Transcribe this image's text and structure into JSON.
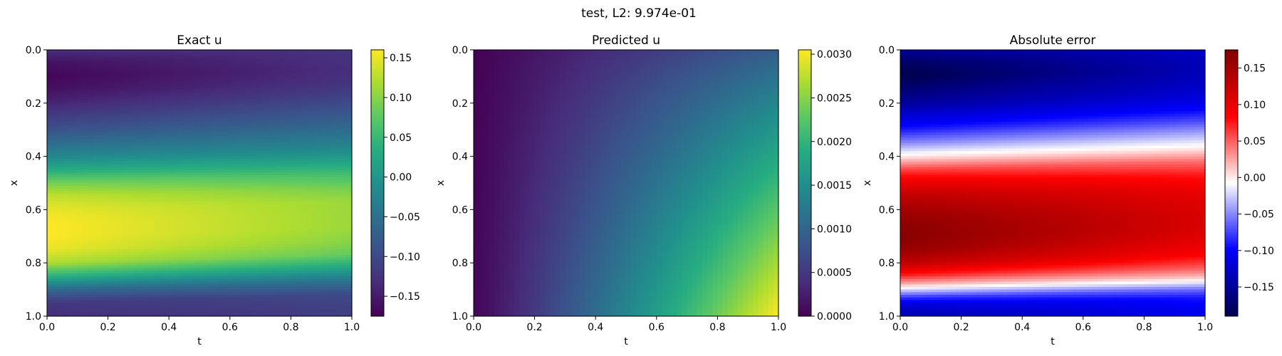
{
  "suptitle": "test, L2: 9.974e-01",
  "chart_data": [
    {
      "type": "heatmap",
      "title": "Exact u",
      "xlabel": "t",
      "ylabel": "x",
      "xlim": [
        0.0,
        1.0
      ],
      "ylim": [
        1.0,
        0.0
      ],
      "x_ticks": [
        "0.0",
        "0.2",
        "0.4",
        "0.6",
        "0.8",
        "1.0"
      ],
      "y_ticks": [
        "0.0",
        "0.2",
        "0.4",
        "0.6",
        "0.8",
        "1.0"
      ],
      "colormap": "viridis",
      "colorbar_range": [
        -0.175,
        0.16
      ],
      "colorbar_ticks": [
        {
          "value": 0.15,
          "label": "0.15"
        },
        {
          "value": 0.1,
          "label": "0.10"
        },
        {
          "value": 0.05,
          "label": "0.05"
        },
        {
          "value": 0.0,
          "label": "0.00"
        },
        {
          "value": -0.05,
          "label": "−0.05"
        },
        {
          "value": -0.1,
          "label": "−0.10"
        },
        {
          "value": -0.15,
          "label": "−0.15"
        }
      ],
      "profile_x": [
        0.0,
        0.05,
        0.1,
        0.15,
        0.2,
        0.3,
        0.4,
        0.45,
        0.5,
        0.55,
        0.6,
        0.65,
        0.7,
        0.75,
        0.8,
        0.85,
        0.9,
        0.95,
        1.0
      ],
      "profile_u_left": [
        -0.13,
        -0.16,
        -0.17,
        -0.16,
        -0.14,
        -0.09,
        -0.02,
        0.03,
        0.09,
        0.13,
        0.15,
        0.16,
        0.16,
        0.15,
        0.12,
        0.04,
        -0.06,
        -0.12,
        -0.13
      ],
      "profile_u_right": [
        -0.12,
        -0.125,
        -0.13,
        -0.125,
        -0.11,
        -0.07,
        -0.02,
        0.02,
        0.06,
        0.09,
        0.11,
        0.11,
        0.11,
        0.1,
        0.08,
        0.02,
        -0.05,
        -0.1,
        -0.11
      ]
    },
    {
      "type": "heatmap",
      "title": "Predicted u",
      "xlabel": "t",
      "ylabel": "x",
      "xlim": [
        0.0,
        1.0
      ],
      "ylim": [
        1.0,
        0.0
      ],
      "x_ticks": [
        "0.0",
        "0.2",
        "0.4",
        "0.6",
        "0.8",
        "1.0"
      ],
      "y_ticks": [
        "0.0",
        "0.2",
        "0.4",
        "0.6",
        "0.8",
        "1.0"
      ],
      "colormap": "viridis",
      "colorbar_range": [
        0.0,
        0.00305
      ],
      "colorbar_ticks": [
        {
          "value": 0.003,
          "label": "0.0030"
        },
        {
          "value": 0.0025,
          "label": "0.0025"
        },
        {
          "value": 0.002,
          "label": "0.0020"
        },
        {
          "value": 0.0015,
          "label": "0.0015"
        },
        {
          "value": 0.001,
          "label": "0.0010"
        },
        {
          "value": 0.0005,
          "label": "0.0005"
        },
        {
          "value": 0.0,
          "label": "0.0000"
        }
      ],
      "corner_values": {
        "t0_x0": 0.0,
        "t1_x0": 0.0009,
        "t0_x1": 5e-05,
        "t1_x1": 0.00305
      }
    },
    {
      "type": "heatmap",
      "title": "Absolute error",
      "xlabel": "t",
      "ylabel": "x",
      "xlim": [
        0.0,
        1.0
      ],
      "ylim": [
        1.0,
        0.0
      ],
      "x_ticks": [
        "0.0",
        "0.2",
        "0.4",
        "0.6",
        "0.8",
        "1.0"
      ],
      "y_ticks": [
        "0.0",
        "0.2",
        "0.4",
        "0.6",
        "0.8",
        "1.0"
      ],
      "colormap": "seismic",
      "colorbar_range": [
        -0.19,
        0.175
      ],
      "colorbar_ticks": [
        {
          "value": 0.15,
          "label": "0.15"
        },
        {
          "value": 0.1,
          "label": "0.10"
        },
        {
          "value": 0.05,
          "label": "0.05"
        },
        {
          "value": 0.0,
          "label": "0.00"
        },
        {
          "value": -0.05,
          "label": "−0.05"
        },
        {
          "value": -0.1,
          "label": "−0.10"
        },
        {
          "value": -0.15,
          "label": "−0.15"
        }
      ],
      "profile_x": [
        0.0,
        0.05,
        0.1,
        0.15,
        0.2,
        0.25,
        0.3,
        0.35,
        0.4,
        0.45,
        0.5,
        0.55,
        0.6,
        0.65,
        0.7,
        0.75,
        0.8,
        0.85,
        0.88,
        0.9,
        0.93,
        0.96,
        1.0
      ],
      "profile_e_left": [
        -0.15,
        -0.18,
        -0.19,
        -0.17,
        -0.15,
        -0.12,
        -0.09,
        -0.05,
        0.0,
        0.06,
        0.1,
        0.13,
        0.15,
        0.165,
        0.17,
        0.16,
        0.13,
        0.07,
        0.02,
        -0.02,
        -0.08,
        -0.12,
        -0.14
      ],
      "profile_e_right": [
        -0.12,
        -0.13,
        -0.135,
        -0.13,
        -0.12,
        -0.1,
        -0.07,
        -0.035,
        0.0,
        0.045,
        0.075,
        0.095,
        0.105,
        0.11,
        0.11,
        0.1,
        0.085,
        0.05,
        0.02,
        -0.01,
        -0.06,
        -0.09,
        -0.105
      ]
    }
  ]
}
